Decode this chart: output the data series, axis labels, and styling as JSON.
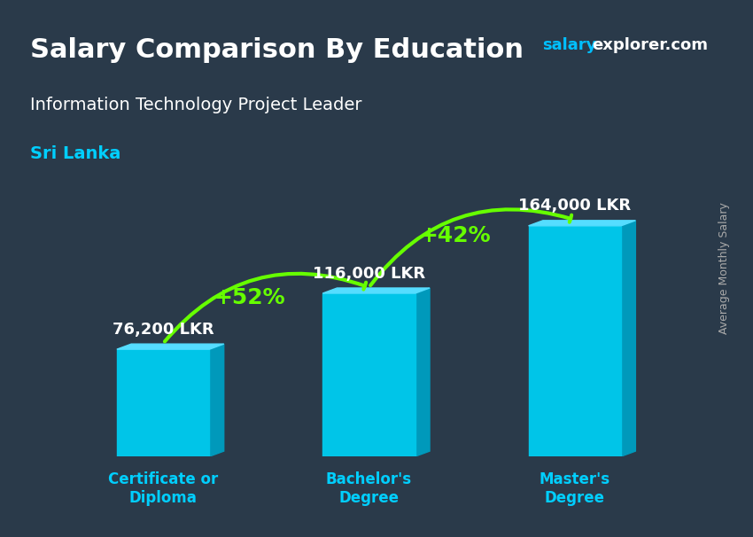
{
  "title": "Salary Comparison By Education",
  "subtitle": "Information Technology Project Leader",
  "country": "Sri Lanka",
  "watermark": "salaryexplorer.com",
  "ylabel": "Average Monthly Salary",
  "categories": [
    "Certificate or\nDiploma",
    "Bachelor's\nDegree",
    "Master's\nDegree"
  ],
  "values": [
    76200,
    116000,
    164000
  ],
  "value_labels": [
    "76,200 LKR",
    "116,000 LKR",
    "164,000 LKR"
  ],
  "pct_labels": [
    "+52%",
    "+42%"
  ],
  "bar_color_top": "#00BFFF",
  "bar_color_mid": "#0099CC",
  "bar_color_side": "#007AA3",
  "title_color": "#FFFFFF",
  "subtitle_color": "#FFFFFF",
  "country_color": "#00CFFF",
  "watermark_salary_color": "#00BFFF",
  "watermark_explorer_color": "#FFFFFF",
  "value_label_color": "#FFFFFF",
  "pct_color": "#66FF00",
  "cat_label_color": "#00CFFF",
  "background_alpha": 0.45,
  "bar_width": 0.45,
  "ylim": [
    0,
    210000
  ],
  "figsize": [
    8.5,
    6.06
  ],
  "dpi": 100
}
